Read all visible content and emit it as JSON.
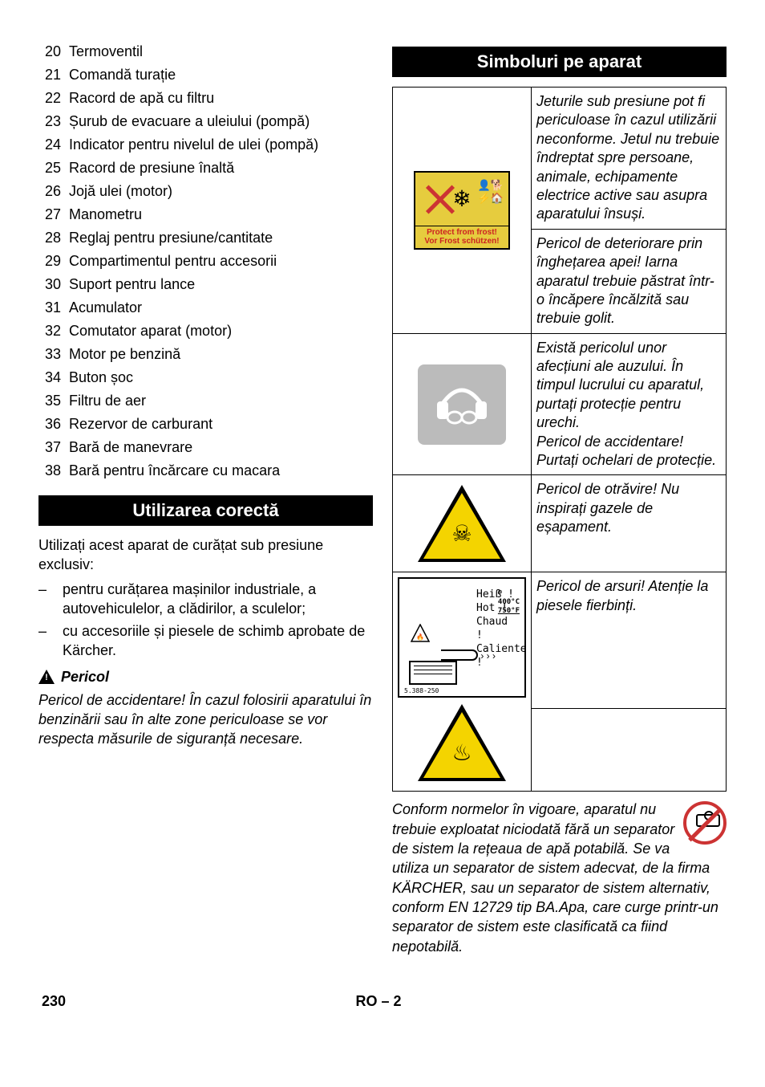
{
  "components": [
    {
      "n": "20",
      "label": "Termoventil"
    },
    {
      "n": "21",
      "label": "Comandă turație"
    },
    {
      "n": "22",
      "label": "Racord de apă cu filtru"
    },
    {
      "n": "23",
      "label": "Șurub de evacuare a uleiului (pompă)"
    },
    {
      "n": "24",
      "label": "Indicator pentru nivelul de ulei (pompă)"
    },
    {
      "n": "25",
      "label": "Racord de presiune înaltă"
    },
    {
      "n": "26",
      "label": "Jojă ulei (motor)"
    },
    {
      "n": "27",
      "label": "Manometru"
    },
    {
      "n": "28",
      "label": "Reglaj pentru presiune/cantitate"
    },
    {
      "n": "29",
      "label": "Compartimentul pentru accesorii"
    },
    {
      "n": "30",
      "label": "Suport pentru lance"
    },
    {
      "n": "31",
      "label": "Acumulator"
    },
    {
      "n": "32",
      "label": "Comutator aparat (motor)"
    },
    {
      "n": "33",
      "label": "Motor pe benzină"
    },
    {
      "n": "34",
      "label": "Buton șoc"
    },
    {
      "n": "35",
      "label": "Filtru de aer"
    },
    {
      "n": "36",
      "label": "Rezervor de carburant"
    },
    {
      "n": "37",
      "label": "Bară de manevrare"
    },
    {
      "n": "38",
      "label": "Bară pentru încărcare cu macara"
    }
  ],
  "sections": {
    "usage_title": "Utilizarea corectă",
    "symbols_title": "Simboluri pe aparat"
  },
  "usage": {
    "intro": "Utilizați acest aparat de curățat sub presiune exclusiv:",
    "bullets": [
      "pentru curățarea mașinilor industriale, a autovehiculelor, a clădirilor, a sculelor;",
      "cu accesoriile și piesele de schimb aprobate de Kärcher."
    ],
    "danger_label": "Pericol",
    "danger_text": "Pericol de accidentare! În cazul folosirii aparatului în benzinării sau în alte zone periculoase se vor respecta măsurile de siguranță necesare."
  },
  "symbols": {
    "frost_label1": "Protect from frost!",
    "frost_label2": "Vor Frost schützen!",
    "frost_txt1": "Jeturile sub presiune pot fi periculoase în cazul utilizării neconforme. Jetul nu trebuie îndreptat spre persoane, animale, echipamente electrice active sau asupra aparatului însuși.",
    "frost_txt2": "Pericol de deteriorare prin înghețarea apei! Iarna aparatul trebuie păstrat într-o încăpere încălzită sau trebuie golit.",
    "ear_txt": "Există pericolul unor afecțiuni ale auzului. În timpul lucrului cu aparatul, purtați protecție pentru urechi.\nPericol de accidentare! Purtați ochelari de protecție.",
    "poison_txt": "Pericol de otrăvire! Nu inspirați gazele de eșapament.",
    "burn_lines": {
      "l1": "Heiß !",
      "l2": "Hot !",
      "l3": "Chaud !",
      "l4": "Caliente !",
      "temp1": "400°C",
      "temp2": "750°F",
      "code": "5.388-250"
    },
    "burn_txt": "Pericol de arsuri! Atenție la piesele fierbinți.",
    "sep_txt": "Conform normelor în vigoare, aparatul nu trebuie exploatat niciodată fără un separator de sistem la rețeaua de apă potabilă. Se va utiliza un separator de sistem adecvat, de la firma KÄRCHER, sau un separator de sistem alternativ, conform EN 12729 tip BA.Apa, care curge printr-un separator de sistem este clasificată ca fiind nepotabilă."
  },
  "footer": {
    "page": "230",
    "lang": "RO",
    "sub": "– 2"
  },
  "colors": {
    "warn_yellow": "#f4d400",
    "red": "#cc3333",
    "grey": "#bbbbbb",
    "frost_bg": "#e6cc3e"
  }
}
